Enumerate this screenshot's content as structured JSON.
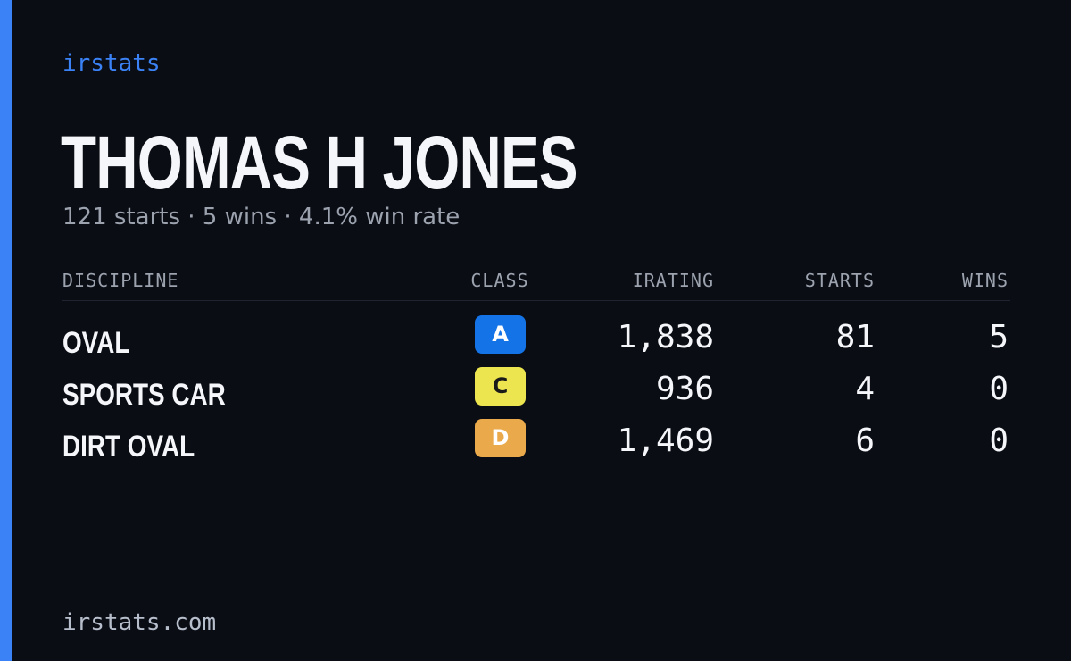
{
  "brand": "irstats",
  "driver": {
    "name": "THOMAS H JONES",
    "summary": "121 starts · 5 wins · 4.1% win rate"
  },
  "table": {
    "headers": {
      "discipline": "DISCIPLINE",
      "class": "CLASS",
      "irating": "IRATING",
      "starts": "STARTS",
      "wins": "WINS"
    },
    "rows": [
      {
        "discipline": "OVAL",
        "class": "A",
        "class_color": "#1473e6",
        "class_text_color": "#ffffff",
        "irating": "1,838",
        "starts": "81",
        "wins": "5"
      },
      {
        "discipline": "SPORTS CAR",
        "class": "C",
        "class_color": "#ece54f",
        "class_text_color": "#1a1a1a",
        "irating": "936",
        "starts": "4",
        "wins": "0"
      },
      {
        "discipline": "DIRT OVAL",
        "class": "D",
        "class_color": "#eaa94b",
        "class_text_color": "#ffffff",
        "irating": "1,469",
        "starts": "6",
        "wins": "0"
      }
    ]
  },
  "footer": "irstats.com",
  "colors": {
    "accent": "#3b82f6",
    "background": "#0a0d14"
  }
}
